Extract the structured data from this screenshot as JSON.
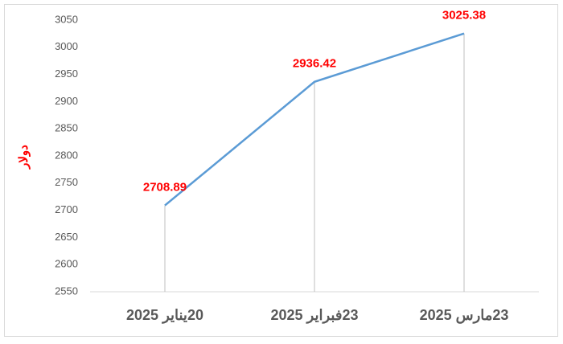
{
  "chart_data": {
    "type": "line",
    "y_label": "دولار",
    "categories": [
      "20يناير 2025",
      "23فبراير 2025",
      "23مارس 2025"
    ],
    "values": [
      2708.89,
      2936.42,
      3025.38
    ],
    "color": "#5b9bd5",
    "label_color": "#ff0000",
    "drop_lines": true,
    "ylim": [
      2550,
      3050
    ],
    "yticks": [
      2550,
      2600,
      2650,
      2700,
      2750,
      2800,
      2850,
      2900,
      2950,
      3000,
      3050
    ],
    "grid": false
  }
}
